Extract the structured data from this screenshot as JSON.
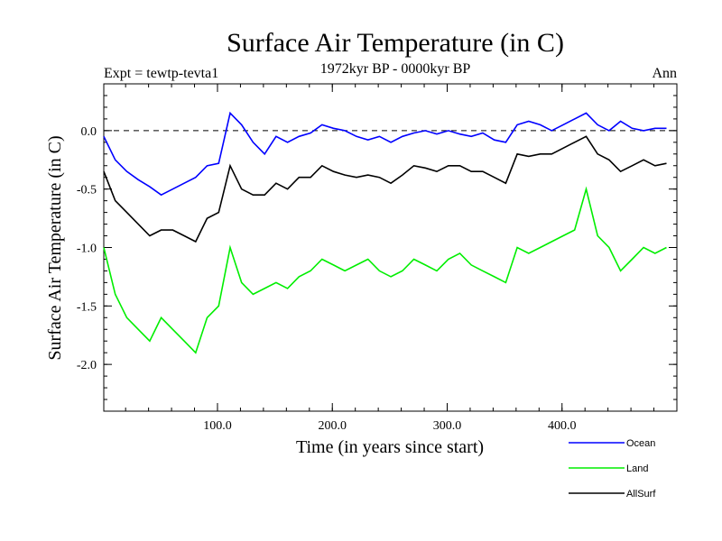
{
  "chart_data": {
    "type": "line",
    "title": "Surface Air Temperature (in C)",
    "subtitle": "1972kyr BP - 0000kyr BP",
    "expt_label": "Expt = tewtp-tevta1",
    "season_label": "Ann",
    "xlabel": "Time (in years since start)",
    "ylabel": "Surface Air Temperature (in C)",
    "xlim": [
      1,
      500
    ],
    "ylim": [
      -2.4,
      0.4
    ],
    "x_ticks": [
      100,
      200,
      300,
      400
    ],
    "x_tick_labels": [
      "100.0",
      "200.0",
      "300.0",
      "400.0"
    ],
    "y_ticks": [
      0.0,
      -0.5,
      -1.0,
      -1.5,
      -2.0
    ],
    "y_tick_labels": [
      "0.0",
      "-0.5",
      "-1.0",
      "-1.5",
      "-2.0"
    ],
    "reference_line": 0.0,
    "legend": {
      "placement": "bottom-right",
      "entries": [
        "Ocean",
        "Land",
        "AllSurf"
      ]
    },
    "x_step": 10,
    "series": [
      {
        "name": "Ocean",
        "color": "#0000ff",
        "values": [
          -0.05,
          -0.25,
          -0.35,
          -0.42,
          -0.48,
          -0.55,
          -0.5,
          -0.45,
          -0.4,
          -0.3,
          -0.28,
          0.15,
          0.05,
          -0.1,
          -0.2,
          -0.05,
          -0.1,
          -0.05,
          -0.02,
          0.05,
          0.02,
          0.0,
          -0.05,
          -0.08,
          -0.05,
          -0.1,
          -0.05,
          -0.02,
          0.0,
          -0.03,
          0.0,
          -0.03,
          -0.05,
          -0.02,
          -0.08,
          -0.1,
          0.05,
          0.08,
          0.05,
          0.0,
          0.05,
          0.1,
          0.15,
          0.05,
          0.0,
          0.08,
          0.02,
          0.0,
          0.02,
          0.02
        ]
      },
      {
        "name": "Land",
        "color": "#00ee00",
        "values": [
          -1.0,
          -1.4,
          -1.6,
          -1.7,
          -1.8,
          -1.6,
          -1.7,
          -1.8,
          -1.9,
          -1.6,
          -1.5,
          -1.0,
          -1.3,
          -1.4,
          -1.35,
          -1.3,
          -1.35,
          -1.25,
          -1.2,
          -1.1,
          -1.15,
          -1.2,
          -1.15,
          -1.1,
          -1.2,
          -1.25,
          -1.2,
          -1.1,
          -1.15,
          -1.2,
          -1.1,
          -1.05,
          -1.15,
          -1.2,
          -1.25,
          -1.3,
          -1.0,
          -1.05,
          -1.0,
          -0.95,
          -0.9,
          -0.85,
          -0.5,
          -0.9,
          -1.0,
          -1.2,
          -1.1,
          -1.0,
          -1.05,
          -1.0
        ]
      },
      {
        "name": "AllSurf",
        "color": "#000000",
        "values": [
          -0.35,
          -0.6,
          -0.7,
          -0.8,
          -0.9,
          -0.85,
          -0.85,
          -0.9,
          -0.95,
          -0.75,
          -0.7,
          -0.3,
          -0.5,
          -0.55,
          -0.55,
          -0.45,
          -0.5,
          -0.4,
          -0.4,
          -0.3,
          -0.35,
          -0.38,
          -0.4,
          -0.38,
          -0.4,
          -0.45,
          -0.38,
          -0.3,
          -0.32,
          -0.35,
          -0.3,
          -0.3,
          -0.35,
          -0.35,
          -0.4,
          -0.45,
          -0.2,
          -0.22,
          -0.2,
          -0.2,
          -0.15,
          -0.1,
          -0.05,
          -0.2,
          -0.25,
          -0.35,
          -0.3,
          -0.25,
          -0.3,
          -0.28
        ]
      }
    ]
  }
}
